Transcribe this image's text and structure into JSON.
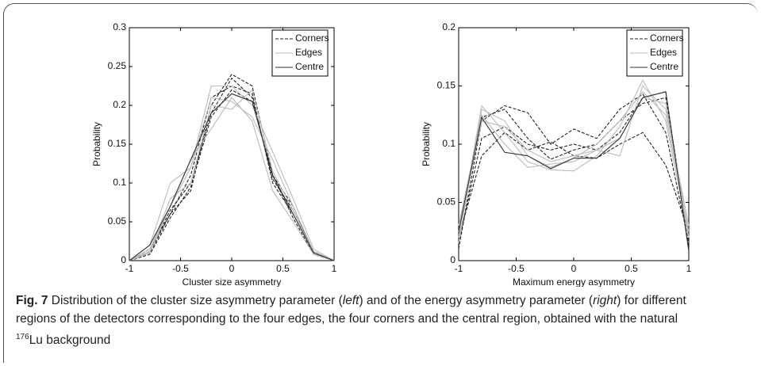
{
  "chart_data": [
    {
      "type": "line",
      "xlabel": "Cluster size asymmetry",
      "ylabel": "Probability",
      "x": [
        -1,
        -0.8,
        -0.6,
        -0.4,
        -0.2,
        0,
        0.2,
        0.4,
        0.6,
        0.8,
        1
      ],
      "xlim": [
        -1,
        1
      ],
      "xticks": [
        -1,
        -0.5,
        0,
        0.5,
        1
      ],
      "ylim": [
        0,
        0.3
      ],
      "yticks": [
        0,
        0.05,
        0.1,
        0.15,
        0.2,
        0.25,
        0.3
      ],
      "legend": "upper right",
      "series": [
        {
          "name": "Corners",
          "color": "#222222",
          "dash": "4,2",
          "lines": [
            [
              0,
              0.01,
              0.06,
              0.09,
              0.2,
              0.24,
              0.225,
              0.11,
              0.07,
              0.01,
              0
            ],
            [
              0,
              0.012,
              0.065,
              0.1,
              0.19,
              0.235,
              0.21,
              0.105,
              0.065,
              0.012,
              0
            ],
            [
              0,
              0.015,
              0.06,
              0.11,
              0.21,
              0.225,
              0.215,
              0.1,
              0.06,
              0.01,
              0
            ],
            [
              0,
              0.008,
              0.055,
              0.095,
              0.185,
              0.22,
              0.205,
              0.11,
              0.055,
              0.008,
              0
            ]
          ]
        },
        {
          "name": "Edges",
          "color": "#bbbbbb",
          "lines": [
            [
              0,
              0.02,
              0.1,
              0.12,
              0.225,
              0.225,
              0.2,
              0.14,
              0.08,
              0.015,
              0
            ],
            [
              0,
              0.01,
              0.07,
              0.13,
              0.17,
              0.21,
              0.18,
              0.09,
              0.05,
              0.008,
              0
            ],
            [
              0,
              0.012,
              0.08,
              0.1,
              0.2,
              0.195,
              0.22,
              0.115,
              0.065,
              0.01,
              0
            ],
            [
              0,
              0.015,
              0.07,
              0.12,
              0.21,
              0.205,
              0.185,
              0.13,
              0.07,
              0.012,
              0
            ]
          ]
        },
        {
          "name": "Centre",
          "color": "#333333",
          "lines": [
            [
              0,
              0.02,
              0.07,
              0.13,
              0.19,
              0.215,
              0.205,
              0.11,
              0.06,
              0.01,
              0
            ]
          ]
        }
      ]
    },
    {
      "type": "line",
      "xlabel": "Maximum energy asymmetry",
      "ylabel": "Probability",
      "x": [
        -1,
        -0.8,
        -0.6,
        -0.4,
        -0.2,
        0,
        0.2,
        0.4,
        0.6,
        0.8,
        1
      ],
      "xlim": [
        -1,
        1
      ],
      "xticks": [
        -1,
        -0.5,
        0,
        0.5,
        1
      ],
      "ylim": [
        0,
        0.2
      ],
      "yticks": [
        0,
        0.05,
        0.1,
        0.15,
        0.2
      ],
      "legend": "upper right",
      "series": [
        {
          "name": "Corners",
          "color": "#222222",
          "dash": "4,2",
          "lines": [
            [
              0.01,
              0.12,
              0.133,
              0.127,
              0.1,
              0.113,
              0.105,
              0.13,
              0.143,
              0.11,
              0.015
            ],
            [
              0.015,
              0.105,
              0.115,
              0.1,
              0.095,
              0.1,
              0.095,
              0.11,
              0.14,
              0.145,
              0.01
            ],
            [
              0.02,
              0.09,
              0.11,
              0.095,
              0.102,
              0.09,
              0.088,
              0.1,
              0.11,
              0.082,
              0.025
            ],
            [
              0.025,
              0.123,
              0.13,
              0.105,
              0.087,
              0.095,
              0.1,
              0.12,
              0.135,
              0.14,
              0.02
            ]
          ]
        },
        {
          "name": "Edges",
          "color": "#bbbbbb",
          "lines": [
            [
              0.02,
              0.133,
              0.11,
              0.085,
              0.078,
              0.077,
              0.09,
              0.115,
              0.155,
              0.12,
              0.02
            ],
            [
              0.03,
              0.125,
              0.1,
              0.08,
              0.083,
              0.085,
              0.095,
              0.09,
              0.15,
              0.13,
              0.03
            ],
            [
              0.015,
              0.13,
              0.12,
              0.09,
              0.08,
              0.088,
              0.1,
              0.12,
              0.145,
              0.125,
              0.025
            ],
            [
              0.025,
              0.12,
              0.115,
              0.095,
              0.085,
              0.09,
              0.095,
              0.105,
              0.14,
              0.135,
              0.02
            ]
          ]
        },
        {
          "name": "Centre",
          "color": "#333333",
          "lines": [
            [
              0.025,
              0.123,
              0.093,
              0.09,
              0.079,
              0.088,
              0.088,
              0.105,
              0.14,
              0.145,
              0.008
            ]
          ]
        }
      ]
    }
  ],
  "caption": {
    "label": "Fig. 7",
    "segments": [
      "Distribution of the cluster size asymmetry parameter (",
      "left",
      ") and of the energy asymmetry parameter (",
      "right",
      ") for different regions of the detectors corresponding to the four edges, the four corners and the central region, obtained with the natural ",
      "176",
      "Lu background"
    ]
  }
}
